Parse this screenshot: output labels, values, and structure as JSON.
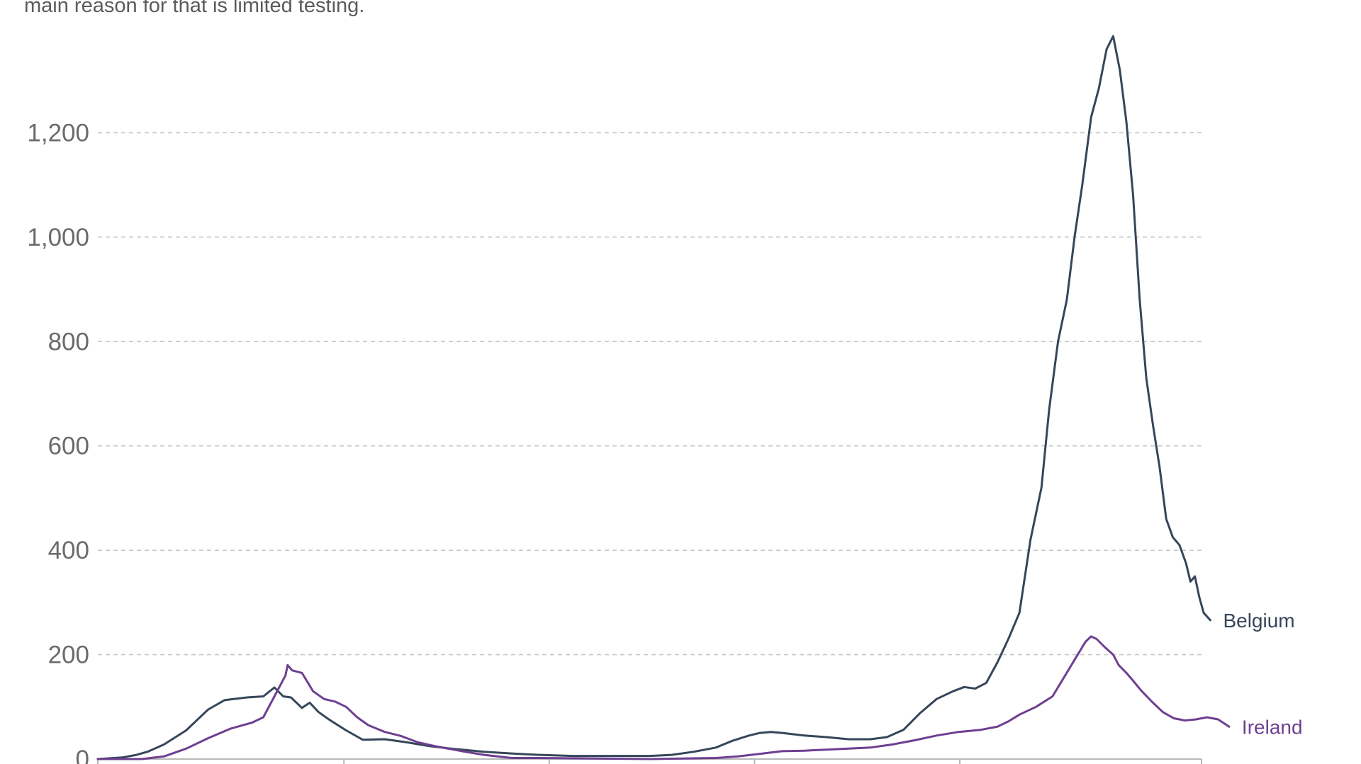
{
  "subtitle": "main reason for that is limited testing.",
  "colors": {
    "grid": "#c8c8c8",
    "axis": "#b8b8b8",
    "tick_text": "#6b6b6b"
  },
  "chart_data": {
    "type": "line",
    "ylim": [
      0,
      1400
    ],
    "yticks": [
      0,
      200,
      400,
      600,
      800,
      1000,
      1200
    ],
    "ytick_labels": [
      "0",
      "200",
      "400",
      "600",
      "800",
      "1,000",
      "1,200"
    ],
    "grid": true,
    "x_range": [
      0,
      1000
    ],
    "x_tick_positions": [
      0,
      223,
      409,
      595,
      781,
      1000
    ],
    "series": [
      {
        "name": "Belgium",
        "color": "#36465a",
        "points": [
          [
            0,
            0
          ],
          [
            22,
            3
          ],
          [
            35,
            8
          ],
          [
            45,
            14
          ],
          [
            60,
            28
          ],
          [
            80,
            55
          ],
          [
            100,
            95
          ],
          [
            115,
            113
          ],
          [
            135,
            118
          ],
          [
            150,
            120
          ],
          [
            160,
            137
          ],
          [
            168,
            120
          ],
          [
            175,
            118
          ],
          [
            185,
            98
          ],
          [
            192,
            108
          ],
          [
            200,
            90
          ],
          [
            210,
            75
          ],
          [
            225,
            55
          ],
          [
            240,
            37
          ],
          [
            260,
            38
          ],
          [
            280,
            32
          ],
          [
            300,
            25
          ],
          [
            320,
            20
          ],
          [
            350,
            14
          ],
          [
            380,
            10
          ],
          [
            400,
            8
          ],
          [
            430,
            6
          ],
          [
            460,
            6
          ],
          [
            500,
            6
          ],
          [
            520,
            8
          ],
          [
            540,
            14
          ],
          [
            560,
            22
          ],
          [
            575,
            35
          ],
          [
            590,
            45
          ],
          [
            600,
            50
          ],
          [
            610,
            52
          ],
          [
            620,
            50
          ],
          [
            640,
            45
          ],
          [
            660,
            42
          ],
          [
            680,
            38
          ],
          [
            700,
            38
          ],
          [
            715,
            42
          ],
          [
            730,
            56
          ],
          [
            745,
            88
          ],
          [
            760,
            115
          ],
          [
            775,
            130
          ],
          [
            785,
            138
          ],
          [
            795,
            135
          ],
          [
            805,
            146
          ],
          [
            815,
            185
          ],
          [
            825,
            230
          ],
          [
            835,
            280
          ],
          [
            845,
            420
          ],
          [
            855,
            520
          ],
          [
            862,
            670
          ],
          [
            870,
            800
          ],
          [
            878,
            880
          ],
          [
            885,
            1000
          ],
          [
            892,
            1100
          ],
          [
            900,
            1230
          ],
          [
            907,
            1285
          ],
          [
            914,
            1360
          ],
          [
            920,
            1385
          ],
          [
            926,
            1320
          ],
          [
            932,
            1220
          ],
          [
            938,
            1080
          ],
          [
            944,
            880
          ],
          [
            950,
            730
          ],
          [
            956,
            640
          ],
          [
            962,
            560
          ],
          [
            968,
            460
          ],
          [
            974,
            425
          ],
          [
            980,
            410
          ],
          [
            986,
            375
          ],
          [
            990,
            340
          ],
          [
            994,
            350
          ],
          [
            998,
            310
          ],
          [
            1002,
            280
          ],
          [
            1008,
            266
          ]
        ]
      },
      {
        "name": "Ireland",
        "color": "#6e3f91",
        "points": [
          [
            0,
            0
          ],
          [
            40,
            0
          ],
          [
            60,
            5
          ],
          [
            80,
            20
          ],
          [
            100,
            40
          ],
          [
            120,
            58
          ],
          [
            140,
            70
          ],
          [
            150,
            80
          ],
          [
            160,
            120
          ],
          [
            170,
            160
          ],
          [
            172,
            180
          ],
          [
            176,
            170
          ],
          [
            185,
            165
          ],
          [
            195,
            130
          ],
          [
            205,
            115
          ],
          [
            215,
            110
          ],
          [
            225,
            100
          ],
          [
            235,
            80
          ],
          [
            245,
            65
          ],
          [
            260,
            52
          ],
          [
            275,
            44
          ],
          [
            290,
            32
          ],
          [
            305,
            25
          ],
          [
            330,
            15
          ],
          [
            350,
            8
          ],
          [
            375,
            2
          ],
          [
            400,
            2
          ],
          [
            450,
            1
          ],
          [
            500,
            0
          ],
          [
            560,
            2
          ],
          [
            580,
            5
          ],
          [
            600,
            10
          ],
          [
            620,
            15
          ],
          [
            640,
            16
          ],
          [
            660,
            18
          ],
          [
            680,
            20
          ],
          [
            700,
            22
          ],
          [
            720,
            28
          ],
          [
            740,
            36
          ],
          [
            760,
            45
          ],
          [
            780,
            52
          ],
          [
            800,
            56
          ],
          [
            815,
            62
          ],
          [
            825,
            72
          ],
          [
            835,
            85
          ],
          [
            850,
            100
          ],
          [
            865,
            120
          ],
          [
            875,
            155
          ],
          [
            885,
            190
          ],
          [
            895,
            225
          ],
          [
            900,
            235
          ],
          [
            905,
            230
          ],
          [
            912,
            215
          ],
          [
            920,
            200
          ],
          [
            925,
            180
          ],
          [
            932,
            165
          ],
          [
            938,
            150
          ],
          [
            945,
            132
          ],
          [
            955,
            110
          ],
          [
            965,
            90
          ],
          [
            975,
            78
          ],
          [
            985,
            74
          ],
          [
            995,
            76
          ],
          [
            1005,
            80
          ],
          [
            1015,
            76
          ],
          [
            1025,
            62
          ]
        ]
      }
    ]
  }
}
